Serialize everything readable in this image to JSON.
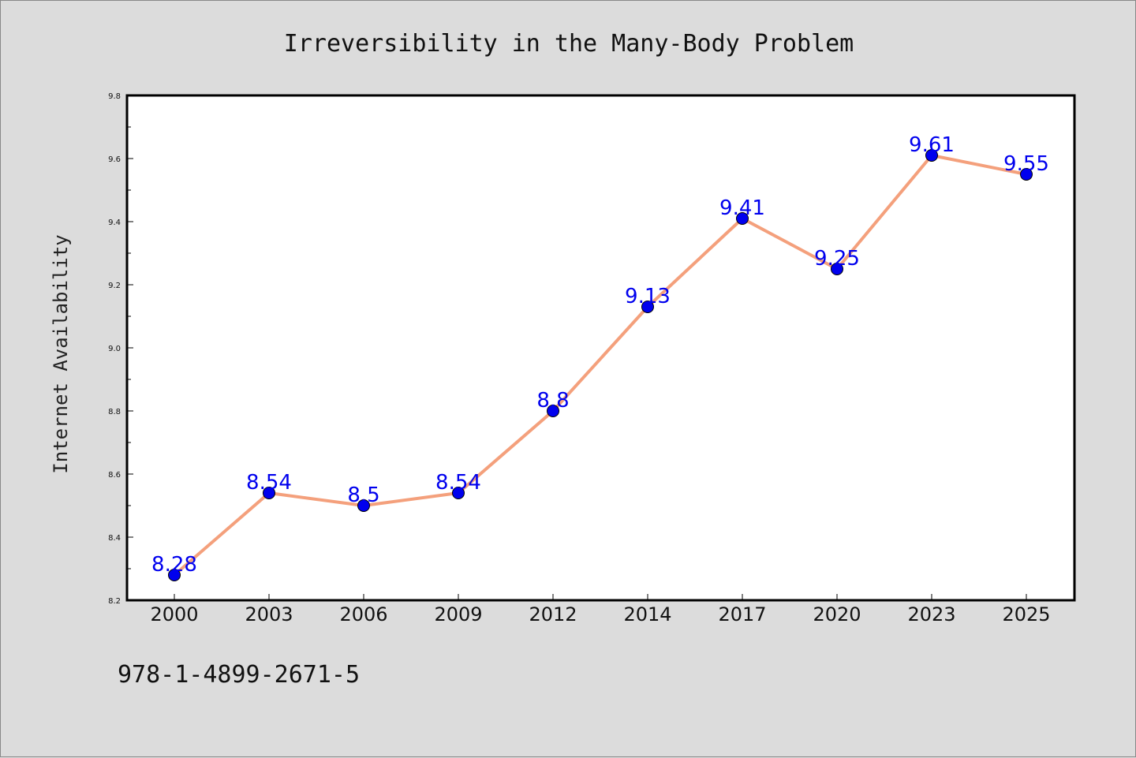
{
  "chart_data": {
    "type": "line",
    "title": "Irreversibility in the Many-Body Problem",
    "xlabel": "",
    "ylabel": "Internet Availability",
    "categories": [
      "2000",
      "2003",
      "2006",
      "2009",
      "2012",
      "2014",
      "2017",
      "2020",
      "2023",
      "2025"
    ],
    "series": [
      {
        "values": [
          8.28,
          8.54,
          8.5,
          8.54,
          8.8,
          9.13,
          9.41,
          9.25,
          9.61,
          9.55
        ],
        "labels": [
          "8.28",
          "8.54",
          "8.5",
          "8.54",
          "8.8",
          "9.13",
          "9.41",
          "9.25",
          "9.61",
          "9.55"
        ],
        "line_color": "#f4a07c",
        "marker_color": "#0000ee",
        "label_color": "#0000ee"
      }
    ],
    "yticks": [
      "8.2",
      "8.4",
      "8.6",
      "8.8",
      "9.0",
      "9.2",
      "9.4",
      "9.6",
      "9.8"
    ],
    "ylim": [
      8.2,
      9.8
    ],
    "grid": false,
    "legend": "none"
  },
  "footer": {
    "isbn": "978-1-4899-2671-5"
  },
  "colors": {
    "background": "#dcdcdc",
    "plot_area": "#ffffff",
    "axis": "#000000"
  }
}
